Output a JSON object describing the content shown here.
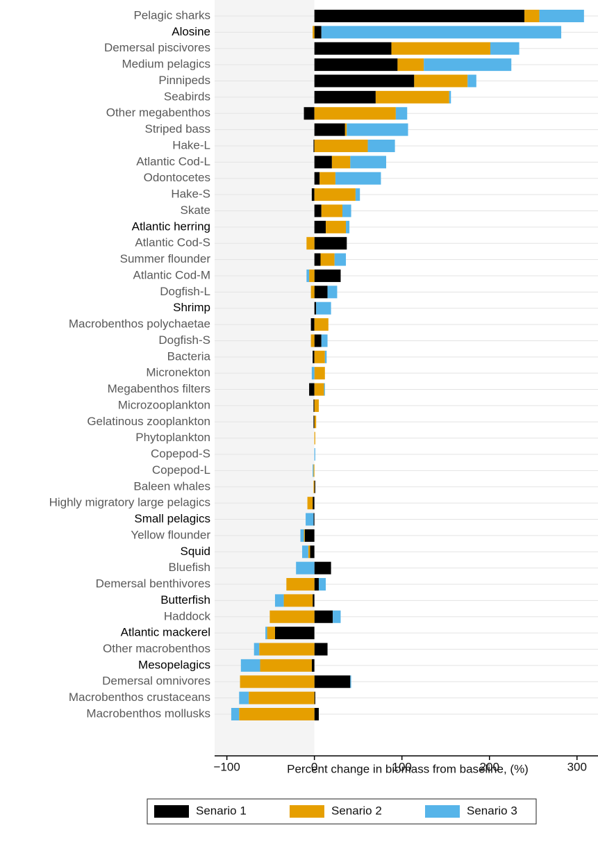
{
  "chart_data": {
    "type": "stacked-bar-horizontal",
    "x_label": "Percent change in biomass from baseline, (%)",
    "categories": [
      "Pelagic sharks",
      "Alosine",
      "Demersal piscivores",
      "Medium pelagics",
      "Pinnipeds",
      "Seabirds",
      "Other megabenthos",
      "Striped bass",
      "Hake-L",
      "Atlantic Cod-L",
      "Odontocetes",
      "Hake-S",
      "Skate",
      "Atlantic herring",
      "Atlantic Cod-S",
      "Summer flounder",
      "Atlantic Cod-M",
      "Dogfish-L",
      "Shrimp",
      "Macrobenthos polychaetae",
      "Dogfish-S",
      "Bacteria",
      "Micronekton",
      "Megabenthos filters",
      "Microzooplankton",
      "Gelatinous zooplankton",
      "Phytoplankton",
      "Copepod-S",
      "Copepod-L",
      "Baleen whales",
      "Highly migratory large pelagics",
      "Small pelagics",
      "Yellow flounder",
      "Squid",
      "Bluefish",
      "Demersal benthivores",
      "Butterfish",
      "Haddock",
      "Atlantic mackerel",
      "Other macrobenthos",
      "Mesopelagics",
      "Demersal omnivores",
      "Macrobenthos crustaceans",
      "Macrobenthos mollusks"
    ],
    "label_colors": [
      "#595959",
      "#000000",
      "#595959",
      "#595959",
      "#595959",
      "#595959",
      "#595959",
      "#595959",
      "#595959",
      "#595959",
      "#595959",
      "#595959",
      "#595959",
      "#000000",
      "#595959",
      "#595959",
      "#595959",
      "#595959",
      "#000000",
      "#595959",
      "#595959",
      "#595959",
      "#595959",
      "#595959",
      "#595959",
      "#595959",
      "#595959",
      "#595959",
      "#595959",
      "#595959",
      "#595959",
      "#000000",
      "#595959",
      "#000000",
      "#595959",
      "#595959",
      "#000000",
      "#595959",
      "#000000",
      "#595959",
      "#000000",
      "#595959",
      "#595959",
      "#595959"
    ],
    "series": [
      {
        "name": "Senario 1",
        "color": "#000000",
        "values": [
          240,
          8,
          88,
          95,
          114,
          70,
          -12,
          35,
          -1,
          20,
          6,
          -3,
          8,
          13,
          37,
          7,
          30,
          15,
          2,
          -4,
          8,
          -2,
          0,
          -6,
          -1,
          -1,
          0,
          0,
          0,
          1,
          -2,
          -1,
          -11,
          -5,
          19,
          5,
          -2,
          21,
          -45,
          15,
          -3,
          41,
          1,
          5
        ]
      },
      {
        "name": "Senario 2",
        "color": "#E69F00",
        "values": [
          17,
          -2,
          113,
          30,
          61,
          84,
          93,
          2,
          61,
          21,
          18,
          47,
          24,
          23,
          -9,
          16,
          -6,
          -4,
          0,
          16,
          -4,
          12,
          12,
          11,
          5,
          2,
          1,
          0,
          -1,
          -1,
          -6,
          0,
          -1,
          -2,
          0,
          -32,
          -33,
          -51,
          -9,
          -63,
          -59,
          -85,
          -75,
          -86
        ]
      },
      {
        "name": "Senario 3",
        "color": "#56B4E9",
        "values": [
          51,
          274,
          33,
          100,
          10,
          2,
          13,
          70,
          31,
          41,
          52,
          5,
          10,
          4,
          0,
          13,
          -3,
          11,
          17,
          0,
          7,
          2,
          -3,
          1,
          0,
          0,
          0,
          1,
          -1,
          0,
          0,
          -9,
          -4,
          -7,
          -21,
          8,
          -10,
          9,
          -2,
          -6,
          -22,
          1,
          -11,
          -9
        ]
      }
    ],
    "xlim": [
      -114,
      324
    ],
    "xticks": [
      {
        "value": -100,
        "label": "−100"
      },
      0,
      100,
      200,
      300
    ],
    "negative_shade": "#f4f4f4",
    "grid": true
  }
}
